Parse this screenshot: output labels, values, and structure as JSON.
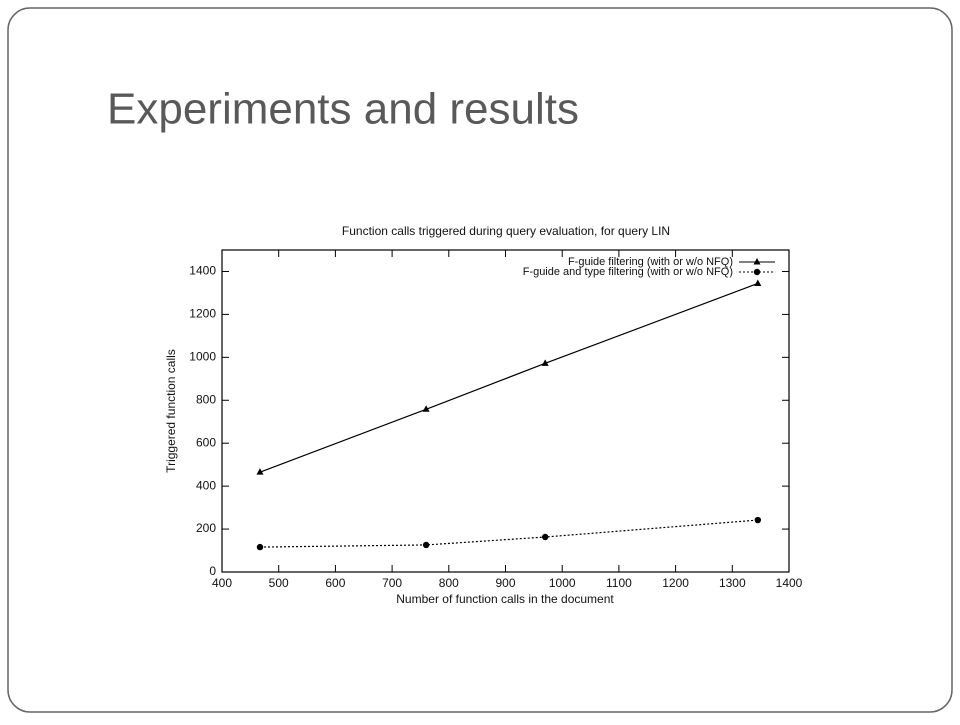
{
  "slide_title": "Experiments and results",
  "chart_data": {
    "type": "line",
    "title": "Function calls triggered during query evaluation, for query LIN",
    "x_label": "Number of function calls in the document",
    "y_label": "Triggered function calls",
    "xlim": [
      400,
      1400
    ],
    "xticks": [
      400,
      500,
      600,
      700,
      800,
      900,
      1000,
      1100,
      1200,
      1300,
      1400
    ],
    "ylim": [
      0,
      1500
    ],
    "yticks": [
      0,
      200,
      400,
      600,
      800,
      1000,
      1200,
      1400
    ],
    "grid": false,
    "legend": "upper right",
    "series": [
      {
        "name": "F-guide filtering (with or w/o NFQ)",
        "color": "#000000",
        "marker": "triangle",
        "dashed": false,
        "x": [
          467,
          760,
          970,
          1345
        ],
        "values": [
          465,
          758,
          972,
          1344
        ]
      },
      {
        "name": "F-guide and type filtering (with or w/o NFQ)",
        "color": "#000000",
        "marker": "circle",
        "dashed": true,
        "x": [
          467,
          760,
          970,
          1345
        ],
        "values": [
          116,
          126,
          163,
          242
        ]
      }
    ]
  }
}
